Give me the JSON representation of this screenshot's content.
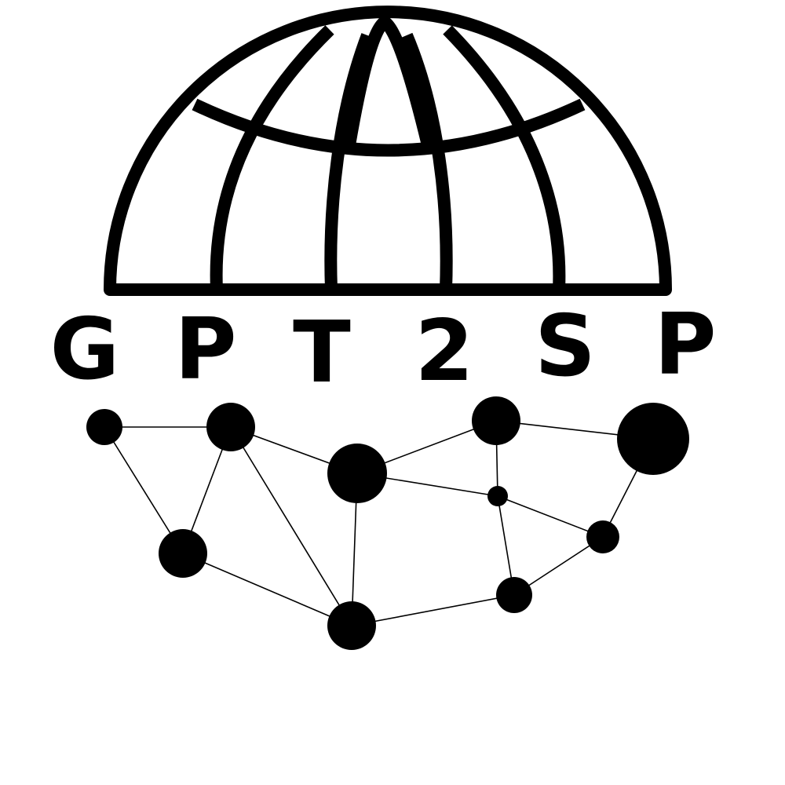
{
  "logo": {
    "name": "GPT2SP",
    "letters": [
      "G",
      "P",
      "T",
      "2",
      "S",
      "P"
    ],
    "colors": {
      "ink": "#000000",
      "background": "#ffffff"
    }
  }
}
